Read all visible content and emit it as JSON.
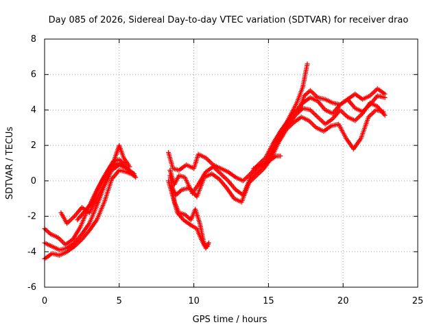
{
  "chart_data": {
    "type": "scatter",
    "title": "Day 085 of 2026, Sidereal Day-to-day VTEC variation (SDTVAR) for receiver drao",
    "xlabel": "GPS time / hours",
    "ylabel": "SDTVAR / TECUs",
    "xlim": [
      0,
      25
    ],
    "ylim": [
      -6,
      8
    ],
    "xticks": [
      0,
      5,
      10,
      15,
      20,
      25
    ],
    "yticks": [
      -6,
      -4,
      -2,
      0,
      2,
      4,
      6,
      8
    ],
    "grid": true,
    "marker": "+",
    "series": [
      {
        "name": "SDTVAR",
        "color": "#ff0000",
        "tracks": [
          [
            [
              0.0,
              -2.7
            ],
            [
              0.4,
              -3.0
            ],
            [
              0.9,
              -3.2
            ],
            [
              1.4,
              -3.6
            ],
            [
              1.9,
              -3.3
            ],
            [
              2.4,
              -2.6
            ],
            [
              2.9,
              -1.6
            ],
            [
              3.4,
              -0.7
            ],
            [
              3.9,
              0.1
            ],
            [
              4.4,
              0.8
            ],
            [
              4.9,
              1.0
            ],
            [
              5.4,
              0.8
            ],
            [
              5.9,
              0.4
            ],
            [
              6.1,
              0.2
            ]
          ],
          [
            [
              0.0,
              -3.5
            ],
            [
              0.5,
              -3.7
            ],
            [
              1.0,
              -3.9
            ],
            [
              1.5,
              -3.8
            ],
            [
              2.0,
              -3.5
            ],
            [
              2.5,
              -3.0
            ],
            [
              3.0,
              -2.4
            ],
            [
              3.5,
              -1.4
            ],
            [
              4.0,
              -0.3
            ],
            [
              4.5,
              0.6
            ],
            [
              5.0,
              0.9
            ],
            [
              5.5,
              0.7
            ],
            [
              6.0,
              0.4
            ]
          ],
          [
            [
              0.0,
              -4.4
            ],
            [
              0.5,
              -4.1
            ],
            [
              1.0,
              -4.2
            ],
            [
              1.5,
              -4.0
            ],
            [
              2.0,
              -3.7
            ],
            [
              2.5,
              -3.3
            ],
            [
              3.0,
              -2.8
            ],
            [
              3.5,
              -2.2
            ],
            [
              4.0,
              -1.2
            ],
            [
              4.5,
              0.1
            ],
            [
              5.0,
              0.6
            ],
            [
              5.5,
              0.5
            ],
            [
              6.0,
              0.3
            ]
          ],
          [
            [
              1.1,
              -1.8
            ],
            [
              1.5,
              -2.4
            ],
            [
              2.0,
              -2.0
            ],
            [
              2.5,
              -1.5
            ],
            [
              3.0,
              -1.8
            ],
            [
              3.5,
              -1.0
            ],
            [
              4.0,
              -0.2
            ],
            [
              4.5,
              0.8
            ],
            [
              4.8,
              1.5
            ],
            [
              5.0,
              2.0
            ],
            [
              5.3,
              1.3
            ],
            [
              5.7,
              0.8
            ]
          ],
          [
            [
              2.2,
              -2.2
            ],
            [
              2.6,
              -1.8
            ],
            [
              3.1,
              -1.3
            ],
            [
              3.6,
              -0.4
            ],
            [
              4.1,
              0.4
            ],
            [
              4.6,
              1.1
            ],
            [
              5.0,
              1.2
            ],
            [
              5.4,
              0.9
            ]
          ],
          [
            [
              8.3,
              1.6
            ],
            [
              8.6,
              0.7
            ],
            [
              9.0,
              0.6
            ],
            [
              9.5,
              0.9
            ],
            [
              10.0,
              0.7
            ],
            [
              10.3,
              1.5
            ],
            [
              10.8,
              1.3
            ],
            [
              11.3,
              0.9
            ],
            [
              11.8,
              0.7
            ],
            [
              12.3,
              0.5
            ],
            [
              12.8,
              0.2
            ],
            [
              13.3,
              0.0
            ],
            [
              13.8,
              0.4
            ],
            [
              14.3,
              0.9
            ],
            [
              14.8,
              1.3
            ],
            [
              15.3,
              2.1
            ],
            [
              15.8,
              2.8
            ],
            [
              16.3,
              3.4
            ],
            [
              16.8,
              3.9
            ],
            [
              17.3,
              4.4
            ],
            [
              17.8,
              4.7
            ],
            [
              18.3,
              4.5
            ],
            [
              18.8,
              4.0
            ],
            [
              19.3,
              3.8
            ],
            [
              19.8,
              4.3
            ],
            [
              20.3,
              4.6
            ],
            [
              20.8,
              4.1
            ],
            [
              21.3,
              3.9
            ],
            [
              21.8,
              4.3
            ],
            [
              22.3,
              4.8
            ],
            [
              22.8,
              4.7
            ]
          ],
          [
            [
              8.4,
              0.6
            ],
            [
              8.7,
              -0.2
            ],
            [
              9.0,
              0.3
            ],
            [
              9.4,
              0.2
            ],
            [
              9.9,
              -0.7
            ],
            [
              10.3,
              -0.2
            ],
            [
              10.8,
              0.5
            ],
            [
              11.3,
              0.8
            ],
            [
              11.8,
              0.4
            ],
            [
              12.3,
              0.0
            ],
            [
              12.8,
              -0.5
            ],
            [
              13.3,
              -0.8
            ],
            [
              13.8,
              0.2
            ],
            [
              14.3,
              0.6
            ],
            [
              14.8,
              1.0
            ],
            [
              15.3,
              1.8
            ],
            [
              15.8,
              2.6
            ],
            [
              16.3,
              3.1
            ],
            [
              16.8,
              3.7
            ],
            [
              17.3,
              4.1
            ],
            [
              17.8,
              4.0
            ],
            [
              18.3,
              3.6
            ],
            [
              18.8,
              3.2
            ],
            [
              19.3,
              3.5
            ],
            [
              19.8,
              4.0
            ],
            [
              20.3,
              3.6
            ],
            [
              20.8,
              3.4
            ],
            [
              21.3,
              3.8
            ],
            [
              21.8,
              4.4
            ],
            [
              22.3,
              4.2
            ],
            [
              22.8,
              3.7
            ]
          ],
          [
            [
              8.5,
              -0.3
            ],
            [
              8.8,
              -0.8
            ],
            [
              9.2,
              -0.5
            ],
            [
              9.7,
              -0.4
            ],
            [
              10.2,
              -0.9
            ],
            [
              10.7,
              0.2
            ],
            [
              11.2,
              0.4
            ],
            [
              11.7,
              0.1
            ],
            [
              12.2,
              -0.4
            ],
            [
              12.7,
              -1.0
            ],
            [
              13.2,
              -1.2
            ],
            [
              13.7,
              -0.1
            ],
            [
              14.2,
              0.3
            ],
            [
              14.7,
              0.7
            ],
            [
              15.2,
              1.3
            ],
            [
              15.7,
              2.2
            ],
            [
              16.2,
              2.9
            ],
            [
              16.7,
              3.3
            ],
            [
              17.2,
              3.6
            ],
            [
              17.7,
              3.4
            ],
            [
              18.2,
              3.0
            ],
            [
              18.7,
              2.8
            ],
            [
              19.2,
              3.1
            ],
            [
              19.7,
              3.2
            ],
            [
              20.2,
              2.4
            ],
            [
              20.7,
              1.8
            ],
            [
              21.2,
              2.4
            ],
            [
              21.7,
              3.6
            ],
            [
              22.2,
              4.0
            ],
            [
              22.7,
              3.9
            ]
          ],
          [
            [
              8.3,
              0.0
            ],
            [
              8.6,
              -0.9
            ],
            [
              8.9,
              -1.8
            ],
            [
              9.3,
              -2.2
            ],
            [
              9.8,
              -2.5
            ],
            [
              10.2,
              -2.7
            ],
            [
              10.5,
              -3.3
            ],
            [
              10.8,
              -3.8
            ],
            [
              11.0,
              -3.5
            ]
          ],
          [
            [
              8.4,
              0.3
            ],
            [
              8.7,
              -1.2
            ],
            [
              9.0,
              -1.8
            ],
            [
              9.4,
              -1.9
            ],
            [
              9.8,
              -2.2
            ],
            [
              10.1,
              -1.6
            ],
            [
              10.4,
              -2.4
            ],
            [
              10.7,
              -3.6
            ],
            [
              10.9,
              -3.7
            ]
          ],
          [
            [
              15.4,
              2.0
            ],
            [
              15.9,
              2.7
            ],
            [
              16.4,
              3.6
            ],
            [
              16.9,
              4.4
            ],
            [
              17.3,
              5.3
            ],
            [
              17.6,
              6.6
            ]
          ],
          [
            [
              17.0,
              3.9
            ],
            [
              17.4,
              4.8
            ],
            [
              17.8,
              5.1
            ],
            [
              18.3,
              4.7
            ],
            [
              18.8,
              4.6
            ],
            [
              19.3,
              4.4
            ],
            [
              19.8,
              4.3
            ],
            [
              20.3,
              4.6
            ],
            [
              20.8,
              4.9
            ],
            [
              21.3,
              4.6
            ],
            [
              21.8,
              4.8
            ],
            [
              22.3,
              5.2
            ],
            [
              22.8,
              4.9
            ]
          ],
          [
            [
              14.0,
              0.7
            ],
            [
              14.5,
              0.9
            ],
            [
              15.0,
              1.1
            ],
            [
              15.5,
              1.4
            ],
            [
              15.8,
              1.4
            ]
          ]
        ]
      }
    ]
  }
}
